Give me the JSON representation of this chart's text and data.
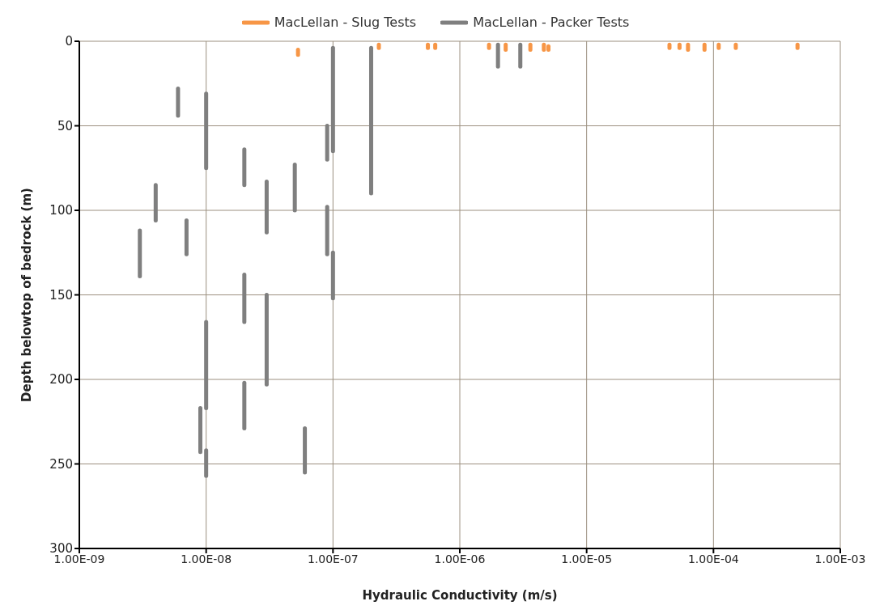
{
  "chart_data": {
    "type": "line",
    "xlabel": "Hydraulic Conductivity (m/s)",
    "ylabel": "Depth belowtop of bedrock (m)",
    "log": "x",
    "grid": true,
    "legend": "top",
    "marker": "none",
    "line_style": "solid",
    "xlim": [
      1e-09,
      0.001
    ],
    "xticks": [
      {
        "value": 1e-09,
        "label": "1.00E-09"
      },
      {
        "value": 1e-08,
        "label": "1.00E-08"
      },
      {
        "value": 1e-07,
        "label": "1.00E-07"
      },
      {
        "value": 1e-06,
        "label": "1.00E-06"
      },
      {
        "value": 1e-05,
        "label": "1.00E-05"
      },
      {
        "value": 0.0001,
        "label": "1.00E-04"
      },
      {
        "value": 0.001,
        "label": "1.00E-03"
      }
    ],
    "ylim": [
      300,
      0
    ],
    "yticks": [
      0,
      50,
      100,
      150,
      200,
      250,
      300
    ],
    "series": [
      {
        "name": "MacLellan - Slug Tests",
        "color": "#f79646",
        "x": [
          5.3e-08,
          5.3e-08
        ],
        "values": [
          5,
          8
        ]
      },
      {
        "color": "#f79646",
        "x": [
          2.3e-07,
          2.3e-07
        ],
        "values": [
          2,
          4
        ]
      },
      {
        "color": "#f79646",
        "x": [
          5.6e-07,
          5.6e-07
        ],
        "values": [
          2,
          4
        ]
      },
      {
        "color": "#f79646",
        "x": [
          6.4e-07,
          6.4e-07
        ],
        "values": [
          2,
          4
        ]
      },
      {
        "color": "#f79646",
        "x": [
          1.7e-06,
          1.7e-06
        ],
        "values": [
          2,
          4
        ]
      },
      {
        "color": "#f79646",
        "x": [
          2.3e-06,
          2.3e-06
        ],
        "values": [
          2,
          5
        ]
      },
      {
        "color": "#f79646",
        "x": [
          3.6e-06,
          3.6e-06
        ],
        "values": [
          2,
          5
        ]
      },
      {
        "color": "#f79646",
        "x": [
          4.6e-06,
          4.6e-06
        ],
        "values": [
          2,
          5
        ]
      },
      {
        "color": "#f79646",
        "x": [
          5e-06,
          5e-06
        ],
        "values": [
          3,
          5
        ]
      },
      {
        "color": "#f79646",
        "x": [
          4.5e-05,
          4.5e-05
        ],
        "values": [
          2,
          4
        ]
      },
      {
        "color": "#f79646",
        "x": [
          5.4e-05,
          5.4e-05
        ],
        "values": [
          2,
          4
        ]
      },
      {
        "color": "#f79646",
        "x": [
          6.3e-05,
          6.3e-05
        ],
        "values": [
          2,
          5
        ]
      },
      {
        "color": "#f79646",
        "x": [
          8.5e-05,
          8.5e-05
        ],
        "values": [
          2,
          5
        ]
      },
      {
        "color": "#f79646",
        "x": [
          0.00011,
          0.00011
        ],
        "values": [
          2,
          4
        ]
      },
      {
        "color": "#f79646",
        "x": [
          0.00015,
          0.00015
        ],
        "values": [
          2,
          4
        ]
      },
      {
        "color": "#f79646",
        "x": [
          0.00046,
          0.00046
        ],
        "values": [
          2,
          4
        ]
      },
      {
        "name": "MacLellan - Packer Tests",
        "color": "#7f7f7f",
        "x": [
          6e-09,
          6e-09
        ],
        "values": [
          28,
          44
        ]
      },
      {
        "color": "#7f7f7f",
        "x": [
          1e-08,
          1e-08
        ],
        "values": [
          31,
          75
        ]
      },
      {
        "color": "#7f7f7f",
        "x": [
          4e-09,
          4e-09
        ],
        "values": [
          85,
          106
        ]
      },
      {
        "color": "#7f7f7f",
        "x": [
          3e-09,
          3e-09
        ],
        "values": [
          112,
          139
        ]
      },
      {
        "color": "#7f7f7f",
        "x": [
          7e-09,
          7e-09
        ],
        "values": [
          106,
          126
        ]
      },
      {
        "color": "#7f7f7f",
        "x": [
          2e-08,
          2e-08
        ],
        "values": [
          64,
          85
        ]
      },
      {
        "color": "#7f7f7f",
        "x": [
          2e-08,
          2e-08
        ],
        "values": [
          138,
          166
        ]
      },
      {
        "color": "#7f7f7f",
        "x": [
          2e-08,
          2e-08
        ],
        "values": [
          202,
          229
        ]
      },
      {
        "color": "#7f7f7f",
        "x": [
          3e-08,
          3e-08
        ],
        "values": [
          83,
          113
        ]
      },
      {
        "color": "#7f7f7f",
        "x": [
          3e-08,
          3e-08
        ],
        "values": [
          150,
          203
        ]
      },
      {
        "color": "#7f7f7f",
        "x": [
          5e-08,
          5e-08
        ],
        "values": [
          73,
          100
        ]
      },
      {
        "color": "#7f7f7f",
        "x": [
          9e-08,
          9e-08
        ],
        "values": [
          50,
          70
        ]
      },
      {
        "color": "#7f7f7f",
        "x": [
          9e-08,
          9e-08
        ],
        "values": [
          98,
          126
        ]
      },
      {
        "color": "#7f7f7f",
        "x": [
          1e-07,
          1e-07
        ],
        "values": [
          4,
          65
        ]
      },
      {
        "color": "#7f7f7f",
        "x": [
          1e-07,
          1e-07
        ],
        "values": [
          125,
          152
        ]
      },
      {
        "color": "#7f7f7f",
        "x": [
          2e-07,
          2e-07
        ],
        "values": [
          4,
          90
        ]
      },
      {
        "color": "#7f7f7f",
        "x": [
          1e-08,
          1e-08
        ],
        "values": [
          166,
          217
        ]
      },
      {
        "color": "#7f7f7f",
        "x": [
          1e-08,
          1e-08
        ],
        "values": [
          242,
          257
        ]
      },
      {
        "color": "#7f7f7f",
        "x": [
          9e-09,
          9e-09
        ],
        "values": [
          217,
          243
        ]
      },
      {
        "color": "#7f7f7f",
        "x": [
          6e-08,
          6e-08
        ],
        "values": [
          229,
          255
        ]
      },
      {
        "color": "#7f7f7f",
        "x": [
          2e-06,
          2e-06
        ],
        "values": [
          2,
          15
        ]
      },
      {
        "color": "#7f7f7f",
        "x": [
          3e-06,
          3e-06
        ],
        "values": [
          2,
          15
        ]
      }
    ]
  }
}
